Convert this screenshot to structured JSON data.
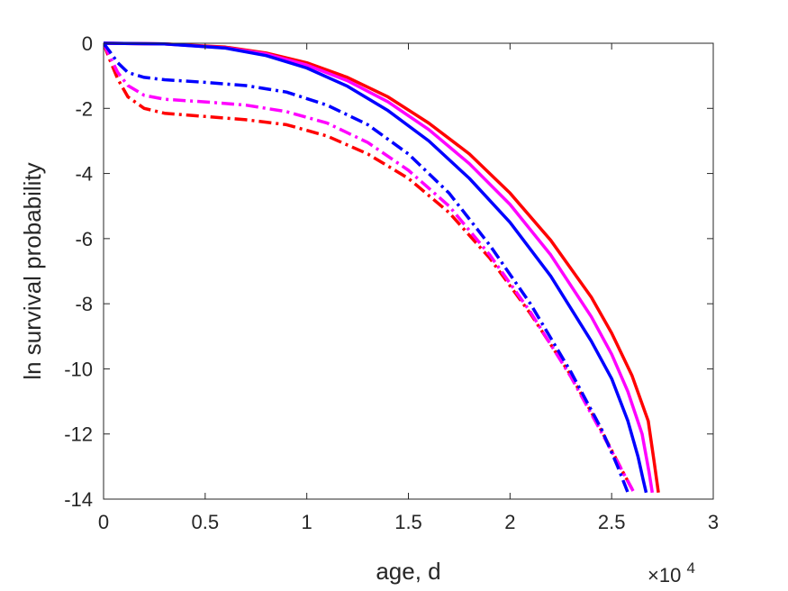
{
  "chart_data": {
    "type": "line",
    "xlabel": "age, d",
    "ylabel": "ln survival probability",
    "x_exponent_label": "×10",
    "x_exponent_power": "4",
    "xlim": [
      0,
      30000
    ],
    "ylim": [
      -14,
      0
    ],
    "xticks": [
      0,
      5000,
      10000,
      15000,
      20000,
      25000,
      30000
    ],
    "xtick_labels": [
      "0",
      "0.5",
      "1",
      "1.5",
      "2",
      "2.5",
      "3"
    ],
    "yticks": [
      0,
      -2,
      -4,
      -6,
      -8,
      -10,
      -12,
      -14
    ],
    "ytick_labels": [
      "0",
      "-2",
      "-4",
      "-6",
      "-8",
      "-10",
      "-12",
      "-14"
    ],
    "grid": false,
    "legend": "none",
    "series": [
      {
        "color": "#ff0000",
        "style": "solid",
        "points": [
          [
            0,
            0
          ],
          [
            3000,
            -0.02
          ],
          [
            6000,
            -0.12
          ],
          [
            8000,
            -0.3
          ],
          [
            10000,
            -0.6
          ],
          [
            12000,
            -1.05
          ],
          [
            14000,
            -1.65
          ],
          [
            16000,
            -2.45
          ],
          [
            18000,
            -3.4
          ],
          [
            20000,
            -4.6
          ],
          [
            22000,
            -6.05
          ],
          [
            24000,
            -7.8
          ],
          [
            25000,
            -8.9
          ],
          [
            26000,
            -10.2
          ],
          [
            26800,
            -11.6
          ],
          [
            27100,
            -12.9
          ],
          [
            27300,
            -13.8
          ]
        ]
      },
      {
        "color": "#ff00ff",
        "style": "solid",
        "points": [
          [
            0,
            0
          ],
          [
            3000,
            -0.02
          ],
          [
            6000,
            -0.14
          ],
          [
            8000,
            -0.33
          ],
          [
            10000,
            -0.67
          ],
          [
            12000,
            -1.15
          ],
          [
            14000,
            -1.8
          ],
          [
            16000,
            -2.65
          ],
          [
            18000,
            -3.7
          ],
          [
            20000,
            -4.95
          ],
          [
            22000,
            -6.5
          ],
          [
            24000,
            -8.4
          ],
          [
            25000,
            -9.55
          ],
          [
            25800,
            -10.7
          ],
          [
            26500,
            -12.0
          ],
          [
            26850,
            -13.2
          ],
          [
            27000,
            -13.8
          ]
        ]
      },
      {
        "color": "#0000ff",
        "style": "solid",
        "points": [
          [
            0,
            0
          ],
          [
            3000,
            -0.02
          ],
          [
            6000,
            -0.15
          ],
          [
            8000,
            -0.38
          ],
          [
            10000,
            -0.76
          ],
          [
            12000,
            -1.32
          ],
          [
            14000,
            -2.07
          ],
          [
            16000,
            -3.0
          ],
          [
            18000,
            -4.15
          ],
          [
            20000,
            -5.5
          ],
          [
            22000,
            -7.15
          ],
          [
            24000,
            -9.15
          ],
          [
            25000,
            -10.3
          ],
          [
            25800,
            -11.6
          ],
          [
            26300,
            -12.7
          ],
          [
            26550,
            -13.4
          ],
          [
            26700,
            -13.8
          ]
        ]
      },
      {
        "color": "#ff0000",
        "style": "dashdot",
        "points": [
          [
            0,
            0
          ],
          [
            300,
            -0.5
          ],
          [
            700,
            -1.1
          ],
          [
            1200,
            -1.65
          ],
          [
            2000,
            -2.0
          ],
          [
            3000,
            -2.15
          ],
          [
            5000,
            -2.25
          ],
          [
            7000,
            -2.35
          ],
          [
            9000,
            -2.5
          ],
          [
            11000,
            -2.85
          ],
          [
            13000,
            -3.4
          ],
          [
            15000,
            -4.15
          ],
          [
            17000,
            -5.2
          ],
          [
            19000,
            -6.6
          ],
          [
            21000,
            -8.3
          ],
          [
            23000,
            -10.2
          ],
          [
            24500,
            -11.9
          ],
          [
            25500,
            -13.1
          ],
          [
            26100,
            -13.8
          ]
        ]
      },
      {
        "color": "#ff00ff",
        "style": "dashdot",
        "points": [
          [
            0,
            0
          ],
          [
            300,
            -0.4
          ],
          [
            700,
            -0.9
          ],
          [
            1200,
            -1.3
          ],
          [
            2000,
            -1.6
          ],
          [
            3000,
            -1.72
          ],
          [
            5000,
            -1.8
          ],
          [
            7000,
            -1.9
          ],
          [
            9000,
            -2.1
          ],
          [
            11000,
            -2.45
          ],
          [
            13000,
            -3.05
          ],
          [
            15000,
            -3.9
          ],
          [
            17000,
            -5.0
          ],
          [
            19000,
            -6.5
          ],
          [
            21000,
            -8.25
          ],
          [
            23000,
            -10.25
          ],
          [
            24500,
            -11.95
          ],
          [
            25500,
            -13.1
          ],
          [
            26100,
            -13.8
          ]
        ]
      },
      {
        "color": "#0000ff",
        "style": "dashdot",
        "points": [
          [
            0,
            0
          ],
          [
            300,
            -0.25
          ],
          [
            700,
            -0.6
          ],
          [
            1200,
            -0.9
          ],
          [
            2000,
            -1.05
          ],
          [
            3000,
            -1.12
          ],
          [
            5000,
            -1.2
          ],
          [
            7000,
            -1.3
          ],
          [
            9000,
            -1.5
          ],
          [
            11000,
            -1.9
          ],
          [
            13000,
            -2.5
          ],
          [
            15000,
            -3.4
          ],
          [
            17000,
            -4.6
          ],
          [
            19000,
            -6.2
          ],
          [
            21000,
            -8.0
          ],
          [
            23000,
            -10.1
          ],
          [
            24500,
            -11.85
          ],
          [
            25300,
            -13.0
          ],
          [
            25800,
            -13.8
          ]
        ]
      }
    ]
  }
}
